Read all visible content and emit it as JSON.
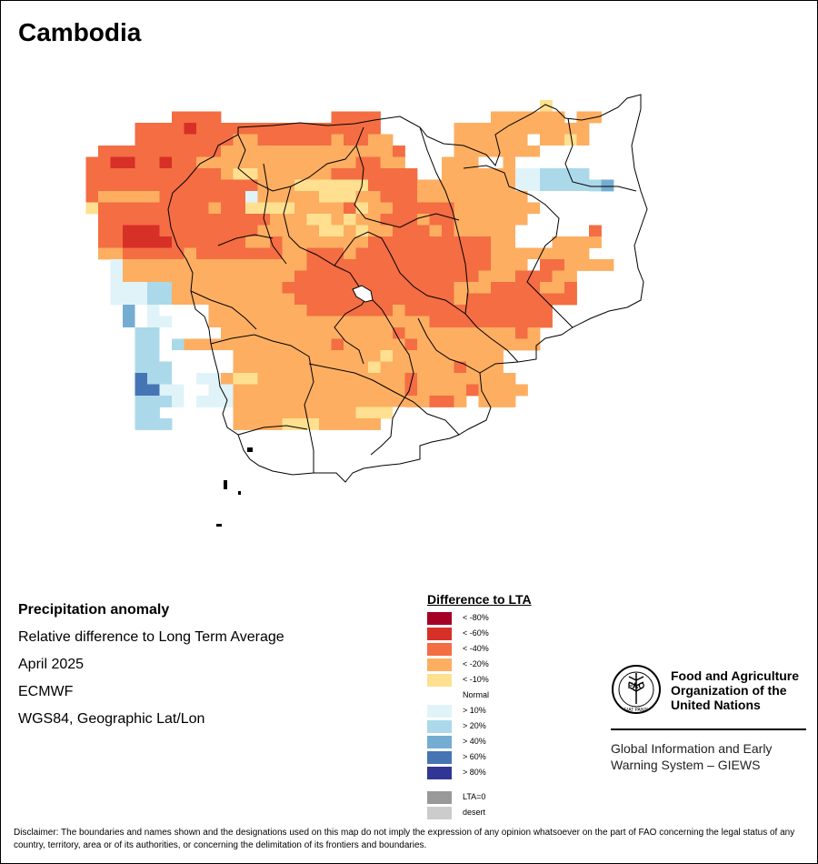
{
  "map": {
    "country": "Cambodia",
    "title": "Precipitation anomaly",
    "subtitle": "Relative difference to Long Term Average",
    "period": "April 2025",
    "source": "ECMWF",
    "projection": "WGS84, Geographic Lat/Lon"
  },
  "legend": {
    "title": "Difference to LTA",
    "items": [
      {
        "label": "< -80%",
        "color": "#a50026"
      },
      {
        "label": "< -60%",
        "color": "#d73027"
      },
      {
        "label": "< -40%",
        "color": "#f46d43"
      },
      {
        "label": "< -20%",
        "color": "#fdae61"
      },
      {
        "label": "< -10%",
        "color": "#fee090"
      },
      {
        "label": "Normal",
        "color": "#ffffff"
      },
      {
        "label": "> 10%",
        "color": "#e0f3f8"
      },
      {
        "label": "> 20%",
        "color": "#abd9e9"
      },
      {
        "label": "> 40%",
        "color": "#74add1"
      },
      {
        "label": "> 60%",
        "color": "#4575b4"
      },
      {
        "label": "> 80%",
        "color": "#313695"
      }
    ],
    "extra": [
      {
        "label": "LTA=0",
        "color": "#999999"
      },
      {
        "label": "desert",
        "color": "#cccccc"
      }
    ]
  },
  "org": {
    "name_line1": "Food and Agriculture",
    "name_line2": "Organization of the",
    "name_line3": "United Nations",
    "emblem_text": "FAO",
    "emblem_motto": "FIAT PANIS",
    "giews_line1": "Global Information and Early",
    "giews_line2": "Warning System – GIEWS"
  },
  "disclaimer": "Disclaimer: The boundaries and names shown and the designations used on this map do not imply the expression of any opinion whatsoever on the part of FAO concerning the legal status of any country, territory, area or of its authorities, or concerning the delimitation of its frontiers and boundaries.",
  "grid": {
    "legend": "0=normal 1=<-80 2=<-60 3=<-40 4=<-20 5=<-10 6=>10 7=>20 8=>40 9=>60",
    "rows": [
      "....................................................",
      "....................................................",
      "....................................................",
      "....................................................",
      "............................................5.......",
      "..............3333.........3333.........444444.44...",
      "...........33332333333333333333......44444444444....",
      "...........333333334433333343344.....44444404454....",
      "........3333333333444444444444443....44444440000....",
      ".......33223323344444444444443344...444004000000....",
      ".......333333333334554444443333333..444444667777....",
      ".......3333333333333344455555533334444444466777778..",
      ".......34444433333336444445554433344444444400000....",
      ".......53333333334335555444435443333344444440000....",
      "........3333333333333344455454433343344444400000....",
      "........33222333333334444455454433343444440000003...",
      "........33222233333344344444443333333333440004444...",
      "........4433333433333334433343333333333344444444....",
      ".........64444444444444443333333333333334440334444..",
      ".........64444444444444433333333333333344433344.....",
      ".........66677444444444333333333333334443333443.....",
      ".........66677444444444433333333333334333333333.....",
      "..........80600004444444433333334333333333333.......",
      "..........80660004444444444444444443333333333.......",
      "..........0770000044444444444444344444444434........",
      "..........0770744444444444434444434444444444........",
      "..........0770000004444444444445444444444...........",
      "..........0777000004444444444454444443444...........",
      "..........09770066455444444444444344444444..........",
      "...........99660066444444444444443444434444.........",
      "...........777606664444444444444444334.444..........",
      "...........77......44444444445550...................",
      "...........777.....444455544444.....................",
      ".......................................................",
      "....................................................."
    ]
  }
}
